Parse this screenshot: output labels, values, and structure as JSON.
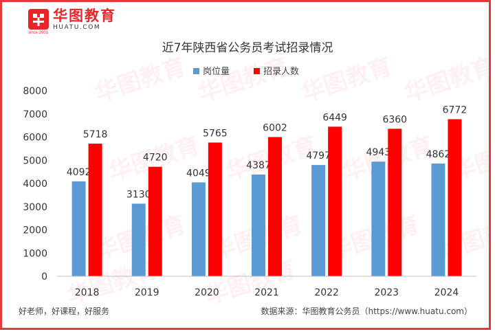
{
  "brand": {
    "logo_cn": "华图教育",
    "logo_en": "HUATU.COM",
    "logo_sub": "since 2001",
    "watermark": "华图教育"
  },
  "footer": {
    "slogan": "好老师，好课程，好服务",
    "source": "数据来源：华图教育公务员（https://www.huatu.com）"
  },
  "colors": {
    "series1": "#5b9bd5",
    "series2": "#ff0000",
    "frame": "#e23a3a",
    "brand": "#e8252a"
  },
  "chart_data": {
    "type": "bar",
    "title": "近7年陕西省公务员考试招录情况",
    "categories": [
      "2018",
      "2019",
      "2020",
      "2021",
      "2022",
      "2023",
      "2024"
    ],
    "series": [
      {
        "name": "岗位量",
        "values": [
          4092,
          3130,
          4049,
          4387,
          4797,
          4943,
          4862
        ]
      },
      {
        "name": "招录人数",
        "values": [
          5718,
          4720,
          5765,
          6002,
          6449,
          6360,
          6772
        ]
      }
    ],
    "ylim": [
      0,
      8000
    ],
    "yticks": [
      0,
      1000,
      2000,
      3000,
      4000,
      5000,
      6000,
      7000,
      8000
    ],
    "xlabel": "",
    "ylabel": "",
    "legend": "top-center",
    "grid": false
  }
}
